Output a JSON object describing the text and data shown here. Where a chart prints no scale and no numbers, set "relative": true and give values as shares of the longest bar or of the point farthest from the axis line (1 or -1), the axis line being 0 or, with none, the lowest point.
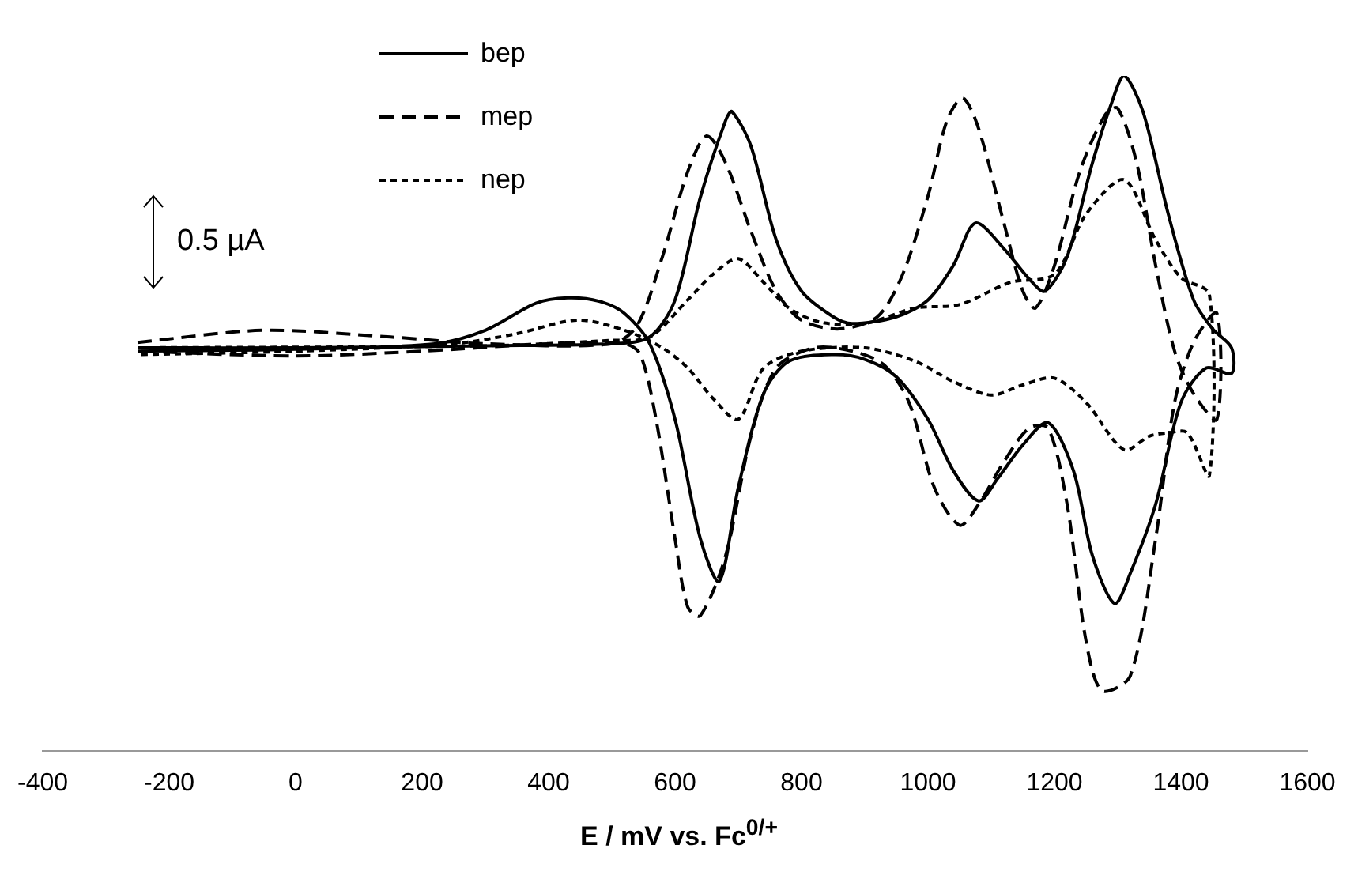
{
  "chart_data": {
    "type": "line",
    "relative": true,
    "xlabel": "E / mV vs. Fc$^{0/+}$",
    "xlim": [
      -400,
      1600
    ],
    "xticks": [
      -400,
      -200,
      0,
      200,
      400,
      600,
      800,
      1000,
      1200,
      1400,
      1600
    ],
    "grid": false,
    "legend": "top",
    "marker": "none",
    "annotations": [
      "0.5 µA"
    ],
    "series": [
      {
        "name": "bep",
        "color": "#000000",
        "line_style": "solid",
        "x": [
          -250,
          0,
          300,
          500,
          560,
          600,
          640,
          680,
          690,
          720,
          760,
          800,
          850,
          880,
          950,
          1000,
          1040,
          1075,
          1120,
          1160,
          1185,
          1220,
          1260,
          1290,
          1310,
          1340,
          1380,
          1420,
          1450,
          1480,
          1480,
          1440,
          1400,
          1360,
          1320,
          1295,
          1260,
          1230,
          1190,
          1150,
          1110,
          1080,
          1040,
          1000,
          950,
          900,
          850,
          780,
          740,
          700,
          670,
          640,
          600,
          560,
          520,
          480,
          430,
          380,
          300,
          220,
          0,
          -250
        ],
        "values": [
          0.597,
          0.597,
          0.6,
          0.603,
          0.613,
          0.668,
          0.82,
          0.934,
          0.947,
          0.896,
          0.757,
          0.681,
          0.643,
          0.633,
          0.643,
          0.668,
          0.719,
          0.782,
          0.744,
          0.699,
          0.681,
          0.732,
          0.871,
          0.959,
          1,
          0.947,
          0.795,
          0.668,
          0.625,
          0.597,
          0.559,
          0.567,
          0.516,
          0.365,
          0.263,
          0.218,
          0.289,
          0.415,
          0.486,
          0.453,
          0.403,
          0.37,
          0.415,
          0.491,
          0.554,
          0.58,
          0.587,
          0.577,
          0.529,
          0.39,
          0.251,
          0.314,
          0.491,
          0.603,
          0.648,
          0.666,
          0.671,
          0.663,
          0.623,
          0.603,
          0.595,
          0.592
        ]
      },
      {
        "name": "mep",
        "color": "#000000",
        "line_style": "dashed",
        "x": [
          -250,
          -50,
          150,
          300,
          500,
          540,
          580,
          620,
          650,
          680,
          720,
          760,
          800,
          860,
          920,
          960,
          1000,
          1030,
          1055,
          1080,
          1120,
          1150,
          1170,
          1200,
          1240,
          1280,
          1300,
          1330,
          1360,
          1390,
          1420,
          1457,
          1457,
          1420,
          1390,
          1360,
          1320,
          1275,
          1250,
          1220,
          1190,
          1160,
          1120,
          1080,
          1050,
          1010,
          970,
          930,
          880,
          820,
          760,
          720,
          680,
          640,
          620,
          600,
          570,
          545,
          520,
          400,
          200,
          0,
          -250
        ],
        "values": [
          0.605,
          0.623,
          0.613,
          0.603,
          0.603,
          0.63,
          0.732,
          0.858,
          0.911,
          0.871,
          0.77,
          0.681,
          0.638,
          0.625,
          0.643,
          0.706,
          0.822,
          0.934,
          0.967,
          0.922,
          0.782,
          0.681,
          0.656,
          0.719,
          0.858,
          0.942,
          0.952,
          0.871,
          0.719,
          0.592,
          0.529,
          0.491,
          0.648,
          0.605,
          0.516,
          0.314,
          0.111,
          0.089,
          0.162,
          0.365,
          0.478,
          0.478,
          0.428,
          0.365,
          0.334,
          0.39,
          0.516,
          0.572,
          0.592,
          0.597,
          0.567,
          0.466,
          0.289,
          0.2,
          0.213,
          0.314,
          0.491,
          0.587,
          0.603,
          0.603,
          0.592,
          0.585,
          0.592
        ]
      },
      {
        "name": "nep",
        "color": "#000000",
        "line_style": "dotted",
        "x": [
          -250,
          300,
          500,
          560,
          620,
          660,
          700,
          740,
          780,
          830,
          900,
          980,
          1050,
          1130,
          1200,
          1250,
          1310,
          1360,
          1400,
          1445,
          1445,
          1410,
          1380,
          1350,
          1310,
          1250,
          1200,
          1150,
          1100,
          1040,
          980,
          900,
          800,
          740,
          700,
          660,
          620,
          580,
          520,
          445,
          350,
          250,
          0,
          -250
        ],
        "values": [
          0.597,
          0.6,
          0.608,
          0.613,
          0.668,
          0.706,
          0.729,
          0.694,
          0.656,
          0.635,
          0.633,
          0.656,
          0.661,
          0.694,
          0.706,
          0.795,
          0.846,
          0.757,
          0.701,
          0.676,
          0.408,
          0.471,
          0.471,
          0.466,
          0.446,
          0.516,
          0.552,
          0.542,
          0.527,
          0.547,
          0.577,
          0.597,
          0.592,
          0.567,
          0.491,
          0.522,
          0.567,
          0.597,
          0.623,
          0.638,
          0.618,
          0.603,
          0.592,
          0.587
        ]
      }
    ]
  }
}
